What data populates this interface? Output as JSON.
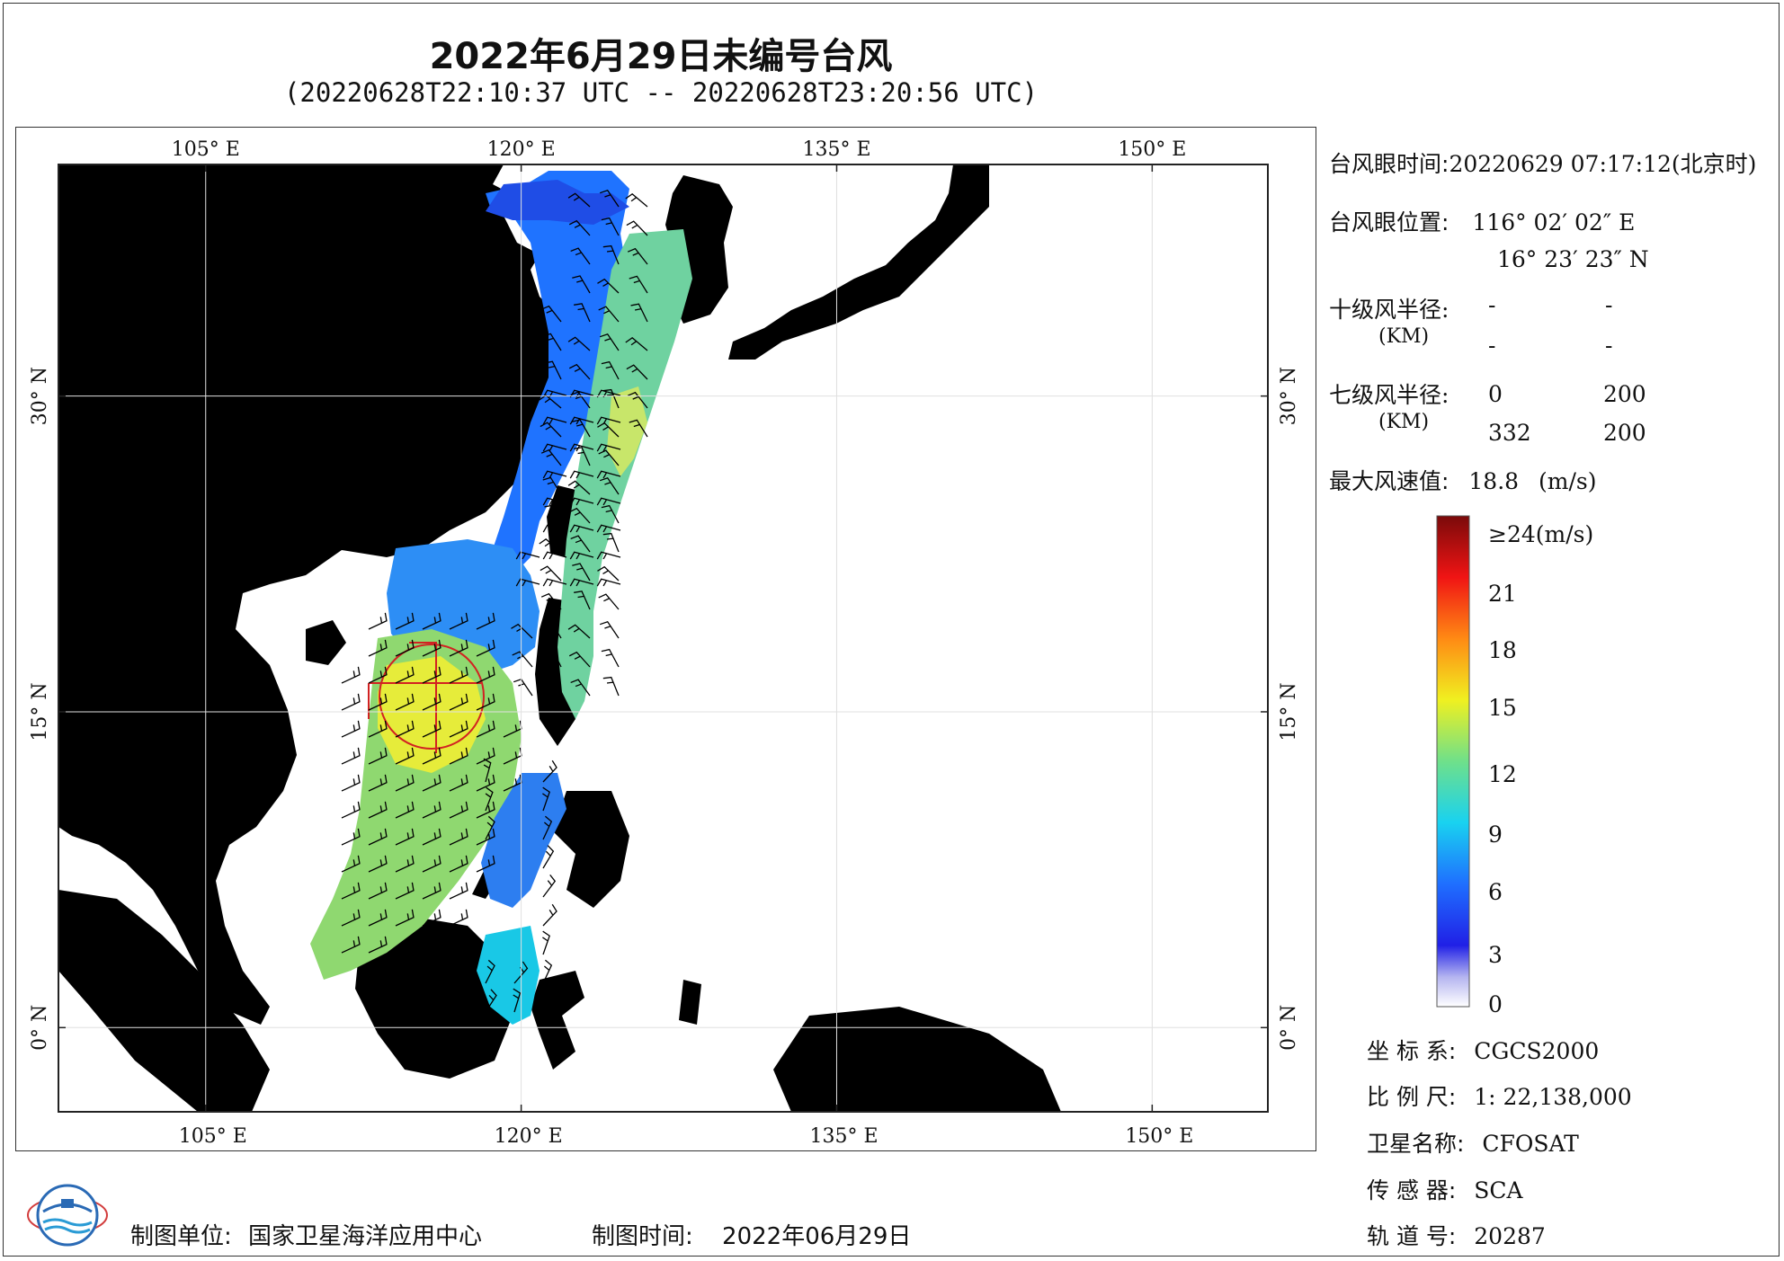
{
  "title": "2022年6月29日未编号台风",
  "subtitle": "(20220628T22:10:37 UTC -- 20220628T23:20:56 UTC)",
  "map": {
    "lon_ticks": [
      "105° E",
      "120° E",
      "135° E",
      "150° E"
    ],
    "lat_ticks": [
      "30° N",
      "15° N",
      "0° N"
    ],
    "lon_range": [
      98,
      155.5
    ],
    "lat_range": [
      -4,
      41
    ],
    "colors": {
      "land": "#d6d6d6",
      "sea": "#ffffff",
      "grid": "#e0e0e0",
      "track": "#d22222"
    }
  },
  "typhoon_info": {
    "eye_time_label": "台风眼时间:",
    "eye_time_value": "20220629 07:17:12(北京时)",
    "eye_pos_label": "台风眼位置:",
    "eye_lon": "116° 02′ 02″ E",
    "eye_lat": "16° 23′ 23″ N",
    "r10_label": "十级风半径:",
    "r10_unit": "(KM)",
    "r10_values": [
      "-",
      "-",
      "-",
      "-"
    ],
    "r7_label": "七级风半径:",
    "r7_unit": "(KM)",
    "r7_values": [
      "0",
      "200",
      "332",
      "200"
    ],
    "max_wind_label": "最大风速值:",
    "max_wind_value": "18.8",
    "max_wind_unit": "(m/s)"
  },
  "colorbar": {
    "labels": [
      "≥24(m/s)",
      "21",
      "18",
      "15",
      "12",
      "9",
      "6",
      "3",
      "0"
    ],
    "min": 0,
    "max": 24
  },
  "meta": {
    "crs_label": "坐 标 系:",
    "crs_value": "CGCS2000",
    "scale_label": "比 例 尺:",
    "scale_value": "1: 22,138,000",
    "satellite_label": "卫星名称:",
    "satellite_value": "CFOSAT",
    "sensor_label": "传 感 器:",
    "sensor_value": "SCA",
    "orbit_label": "轨 道 号:",
    "orbit_value": "20287"
  },
  "footer": {
    "unit_label": "制图单位:",
    "unit_value": "国家卫星海洋应用中心",
    "date_label": "制图时间:",
    "date_value": "2022年06月29日"
  }
}
